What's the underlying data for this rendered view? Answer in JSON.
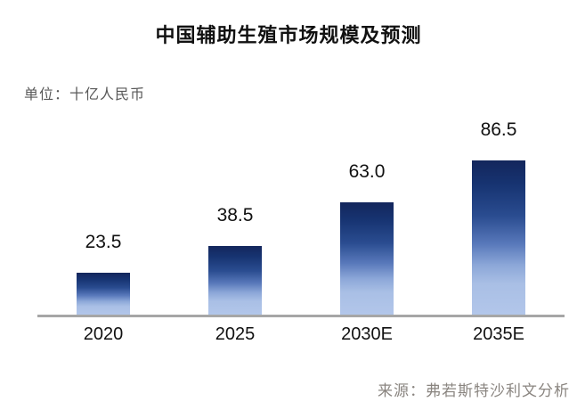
{
  "title": "中国辅助生殖市场规模及预测",
  "unit_label": "单位：十亿人民币",
  "source_label": "来源：弗若斯特沙利文分析",
  "chart_data": {
    "type": "bar",
    "title": "中国辅助生殖市场规模及预测",
    "unit": "十亿人民币",
    "categories": [
      "2020",
      "2025",
      "2030E",
      "2035E"
    ],
    "values": [
      23.5,
      38.5,
      63.0,
      86.5
    ],
    "value_labels": [
      "23.5",
      "38.5",
      "63.0",
      "86.5"
    ],
    "xlabel": "",
    "ylabel": "",
    "ylim": [
      0,
      100
    ],
    "grid": false,
    "legend": "none",
    "bar_color_top": "#13265c",
    "bar_color_bottom": "#b2c6ea",
    "axis_line_color": "#a6a6a6"
  },
  "colors": {
    "background": "#ffffff",
    "title_text": "#111111",
    "unit_text": "#595959",
    "source_text": "#8a8580",
    "value_text": "#111111",
    "tick_text": "#111111"
  }
}
